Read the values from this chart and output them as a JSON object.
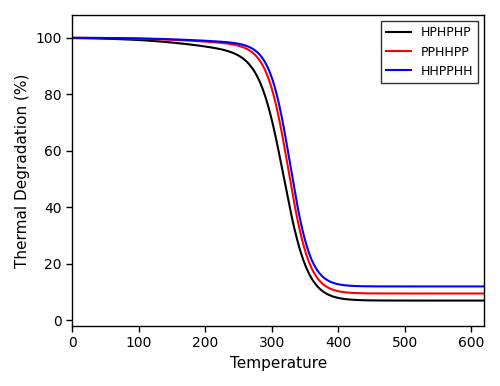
{
  "title": "",
  "xlabel": "Temperature",
  "ylabel": "Thermal Degradation (%)",
  "xlim": [
    0,
    620
  ],
  "ylim": [
    -2,
    108
  ],
  "xticks": [
    0,
    100,
    200,
    300,
    400,
    500,
    600
  ],
  "yticks": [
    0,
    20,
    40,
    60,
    80,
    100
  ],
  "series": [
    {
      "label": "HPHPHP",
      "color": "#000000",
      "initial": 100.0,
      "final": 7.0,
      "midpoint": 318,
      "k": 0.055,
      "early_drop": 6.0,
      "early_mid": 200,
      "early_k": 0.018
    },
    {
      "label": "PPHHPP",
      "color": "#FF0000",
      "initial": 100.0,
      "final": 9.5,
      "midpoint": 325,
      "k": 0.062,
      "early_drop": 3.0,
      "early_mid": 210,
      "early_k": 0.018
    },
    {
      "label": "HHPPHH",
      "color": "#0000FF",
      "initial": 100.0,
      "final": 12.0,
      "midpoint": 328,
      "k": 0.065,
      "early_drop": 2.5,
      "early_mid": 215,
      "early_k": 0.018
    }
  ],
  "legend_loc": "upper right",
  "linewidth": 1.5,
  "background_color": "#ffffff",
  "tick_labelsize": 10,
  "label_fontsize": 11,
  "legend_fontsize": 9
}
